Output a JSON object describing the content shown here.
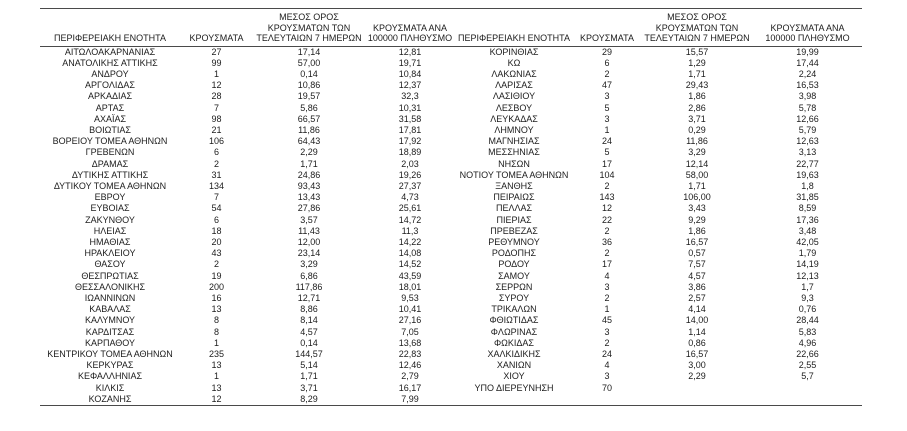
{
  "table": {
    "headers": {
      "region": "ΠΕΡΙΦΕΡΕΙΑΚΗ ΕΝΟΤΗΤΑ",
      "cases": "ΚΡΟΥΣΜΑΤΑ",
      "avg7": "ΜΕΣΟΣ ΟΡΟΣ\nΚΡΟΥΣΜΑΤΩΝ ΤΩΝ\nΤΕΛΕΥΤΑΙΩΝ 7 ΗΜΕΡΩΝ",
      "per100k": "ΚΡΟΥΣΜΑΤΑ ΑΝΑ\n100000 ΠΛΗΘΥΣΜΟ"
    },
    "left_rows": [
      [
        "ΑΙΤΩΛΟΑΚΑΡΝΑΝΙΑΣ",
        "27",
        "17,14",
        "12,81"
      ],
      [
        "ΑΝΑΤΟΛΙΚΗΣ ΑΤΤΙΚΗΣ",
        "99",
        "57,00",
        "19,71"
      ],
      [
        "ΑΝΔΡΟΥ",
        "1",
        "0,14",
        "10,84"
      ],
      [
        "ΑΡΓΟΛΙΔΑΣ",
        "12",
        "10,86",
        "12,37"
      ],
      [
        "ΑΡΚΑΔΙΑΣ",
        "28",
        "19,57",
        "32,3"
      ],
      [
        "ΑΡΤΑΣ",
        "7",
        "5,86",
        "10,31"
      ],
      [
        "ΑΧΑΪΑΣ",
        "98",
        "66,57",
        "31,58"
      ],
      [
        "ΒΟΙΩΤΙΑΣ",
        "21",
        "11,86",
        "17,81"
      ],
      [
        "ΒΟΡΕΙΟΥ ΤΟΜΕΑ ΑΘΗΝΩΝ",
        "106",
        "64,43",
        "17,92"
      ],
      [
        "ΓΡΕΒΕΝΩΝ",
        "6",
        "2,29",
        "18,89"
      ],
      [
        "ΔΡΑΜΑΣ",
        "2",
        "1,71",
        "2,03"
      ],
      [
        "ΔΥΤΙΚΗΣ ΑΤΤΙΚΗΣ",
        "31",
        "24,86",
        "19,26"
      ],
      [
        "ΔΥΤΙΚΟΥ ΤΟΜΕΑ ΑΘΗΝΩΝ",
        "134",
        "93,43",
        "27,37"
      ],
      [
        "ΕΒΡΟΥ",
        "7",
        "13,43",
        "4,73"
      ],
      [
        "ΕΥΒΟΙΑΣ",
        "54",
        "27,86",
        "25,61"
      ],
      [
        "ΖΑΚΥΝΘΟΥ",
        "6",
        "3,57",
        "14,72"
      ],
      [
        "ΗΛΕΙΑΣ",
        "18",
        "11,43",
        "11,3"
      ],
      [
        "ΗΜΑΘΙΑΣ",
        "20",
        "12,00",
        "14,22"
      ],
      [
        "ΗΡΑΚΛΕΙΟΥ",
        "43",
        "23,14",
        "14,08"
      ],
      [
        "ΘΑΣΟΥ",
        "2",
        "3,29",
        "14,52"
      ],
      [
        "ΘΕΣΠΡΩΤΙΑΣ",
        "19",
        "6,86",
        "43,59"
      ],
      [
        "ΘΕΣΣΑΛΟΝΙΚΗΣ",
        "200",
        "117,86",
        "18,01"
      ],
      [
        "ΙΩΑΝΝΙΝΩΝ",
        "16",
        "12,71",
        "9,53"
      ],
      [
        "ΚΑΒΑΛΑΣ",
        "13",
        "8,86",
        "10,41"
      ],
      [
        "ΚΑΛΥΜΝΟΥ",
        "8",
        "8,14",
        "27,16"
      ],
      [
        "ΚΑΡΔΙΤΣΑΣ",
        "8",
        "4,57",
        "7,05"
      ],
      [
        "ΚΑΡΠΑΘΟΥ",
        "1",
        "0,14",
        "13,68"
      ],
      [
        "ΚΕΝΤΡΙΚΟΥ ΤΟΜΕΑ ΑΘΗΝΩΝ",
        "235",
        "144,57",
        "22,83"
      ],
      [
        "ΚΕΡΚΥΡΑΣ",
        "13",
        "5,14",
        "12,46"
      ],
      [
        "ΚΕΦΑΛΛΗΝΙΑΣ",
        "1",
        "1,71",
        "2,79"
      ],
      [
        "ΚΙΛΚΙΣ",
        "13",
        "3,71",
        "16,17"
      ],
      [
        "ΚΟΖΑΝΗΣ",
        "12",
        "8,29",
        "7,99"
      ]
    ],
    "right_rows": [
      [
        "ΚΟΡΙΝΘΙΑΣ",
        "29",
        "15,57",
        "19,99"
      ],
      [
        "ΚΩ",
        "6",
        "1,29",
        "17,44"
      ],
      [
        "ΛΑΚΩΝΙΑΣ",
        "2",
        "1,71",
        "2,24"
      ],
      [
        "ΛΑΡΙΣΑΣ",
        "47",
        "29,43",
        "16,53"
      ],
      [
        "ΛΑΣΙΘΙΟΥ",
        "3",
        "1,86",
        "3,98"
      ],
      [
        "ΛΕΣΒΟΥ",
        "5",
        "2,86",
        "5,78"
      ],
      [
        "ΛΕΥΚΑΔΑΣ",
        "3",
        "3,71",
        "12,66"
      ],
      [
        "ΛΗΜΝΟΥ",
        "1",
        "0,29",
        "5,79"
      ],
      [
        "ΜΑΓΝΗΣΙΑΣ",
        "24",
        "11,86",
        "12,63"
      ],
      [
        "ΜΕΣΣΗΝΙΑΣ",
        "5",
        "3,29",
        "3,13"
      ],
      [
        "ΝΗΣΩΝ",
        "17",
        "12,14",
        "22,77"
      ],
      [
        "ΝΟΤΙΟΥ ΤΟΜΕΑ ΑΘΗΝΩΝ",
        "104",
        "58,00",
        "19,63"
      ],
      [
        "ΞΑΝΘΗΣ",
        "2",
        "1,71",
        "1,8"
      ],
      [
        "ΠΕΙΡΑΙΩΣ",
        "143",
        "106,00",
        "31,85"
      ],
      [
        "ΠΕΛΛΑΣ",
        "12",
        "3,43",
        "8,59"
      ],
      [
        "ΠΙΕΡΙΑΣ",
        "22",
        "9,29",
        "17,36"
      ],
      [
        "ΠΡΕΒΕΖΑΣ",
        "2",
        "1,86",
        "3,48"
      ],
      [
        "ΡΕΘΥΜΝΟΥ",
        "36",
        "16,57",
        "42,05"
      ],
      [
        "ΡΟΔΟΠΗΣ",
        "2",
        "0,57",
        "1,79"
      ],
      [
        "ΡΟΔΟΥ",
        "17",
        "7,57",
        "14,19"
      ],
      [
        "ΣΑΜΟΥ",
        "4",
        "4,57",
        "12,13"
      ],
      [
        "ΣΕΡΡΩΝ",
        "3",
        "3,86",
        "1,7"
      ],
      [
        "ΣΥΡΟΥ",
        "2",
        "2,57",
        "9,3"
      ],
      [
        "ΤΡΙΚΑΛΩΝ",
        "1",
        "4,14",
        "0,76"
      ],
      [
        "ΦΘΙΩΤΙΔΑΣ",
        "45",
        "14,00",
        "28,44"
      ],
      [
        "ΦΛΩΡΙΝΑΣ",
        "3",
        "1,14",
        "5,83"
      ],
      [
        "ΦΩΚΙΔΑΣ",
        "2",
        "0,86",
        "4,96"
      ],
      [
        "ΧΑΛΚΙΔΙΚΗΣ",
        "24",
        "16,57",
        "22,66"
      ],
      [
        "ΧΑΝΙΩΝ",
        "4",
        "3,00",
        "2,55"
      ],
      [
        "ΧΙΟΥ",
        "3",
        "2,29",
        "5,7"
      ],
      [
        "ΥΠΟ ΔΙΕΡΕΥΝΗΣΗ",
        "70",
        "",
        ""
      ]
    ]
  }
}
